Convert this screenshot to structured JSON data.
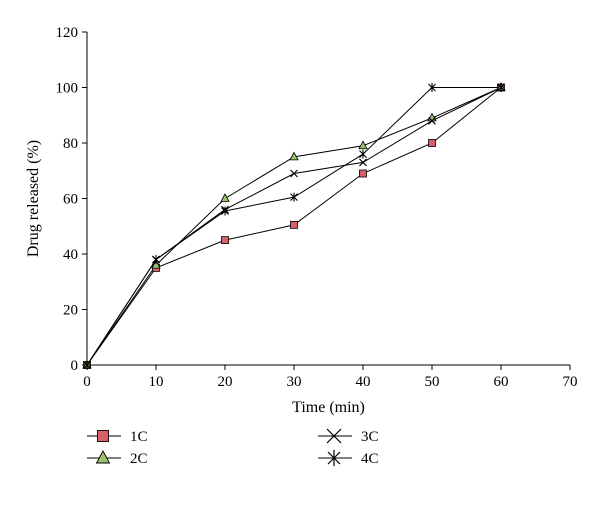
{
  "chart_data": {
    "type": "line",
    "title": "",
    "xlabel": "Time (min)",
    "ylabel": "Drug released (%)",
    "xlim": [
      0,
      70
    ],
    "ylim": [
      0,
      120
    ],
    "xticks": [
      0,
      10,
      20,
      30,
      40,
      50,
      60,
      70
    ],
    "yticks": [
      0,
      20,
      40,
      60,
      80,
      100,
      120
    ],
    "grid": false,
    "legend_position": "bottom",
    "x": [
      0,
      10,
      20,
      30,
      40,
      50,
      60
    ],
    "series": [
      {
        "name": "1C",
        "marker": "square",
        "marker_color": "#d9606b",
        "values": [
          0,
          35,
          45,
          50.5,
          69,
          80,
          100
        ]
      },
      {
        "name": "2C",
        "marker": "triangle",
        "marker_color": "#9bc36a",
        "values": [
          0,
          36,
          60,
          75,
          79,
          89,
          100
        ]
      },
      {
        "name": "3C",
        "marker": "x",
        "marker_color": "#000000",
        "values": [
          0,
          38,
          56,
          69,
          73,
          88,
          100
        ]
      },
      {
        "name": "4C",
        "marker": "star",
        "marker_color": "#000000",
        "values": [
          0,
          38,
          55.5,
          60.5,
          76,
          100,
          100
        ]
      }
    ]
  }
}
